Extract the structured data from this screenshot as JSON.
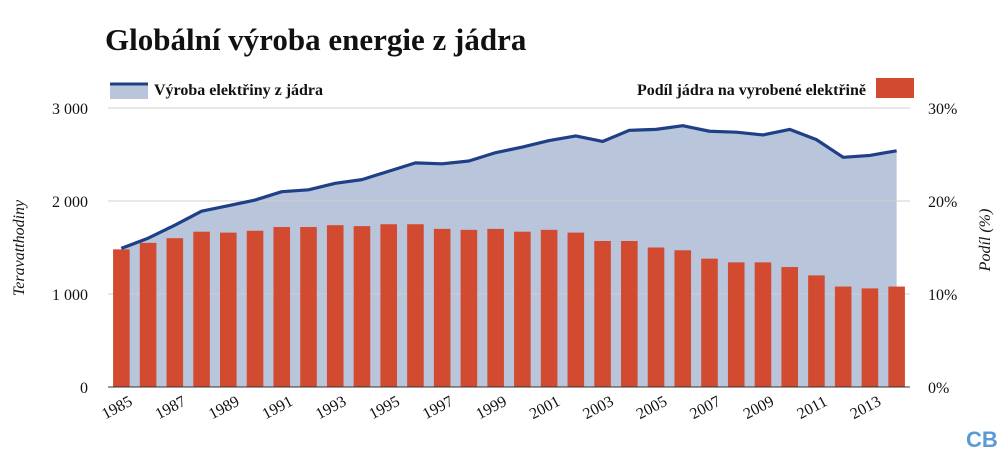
{
  "chart_data": {
    "type": "bar+area",
    "title": "Globální výroba energie z jádra",
    "x": [
      1985,
      1986,
      1987,
      1988,
      1989,
      1990,
      1991,
      1992,
      1993,
      1994,
      1995,
      1996,
      1997,
      1998,
      1999,
      2000,
      2001,
      2002,
      2003,
      2004,
      2005,
      2006,
      2007,
      2008,
      2009,
      2010,
      2011,
      2012,
      2013,
      2014
    ],
    "x_tick_labels": [
      "1985",
      "1987",
      "1989",
      "1991",
      "1993",
      "1995",
      "1997",
      "1999",
      "2001",
      "2003",
      "2005",
      "2007",
      "2009",
      "2011",
      "2013"
    ],
    "series": [
      {
        "name": "Výroba elektřiny z jádra",
        "type": "area-line",
        "axis": "left",
        "values": [
          1490,
          1600,
          1740,
          1890,
          1950,
          2010,
          2100,
          2120,
          2190,
          2230,
          2320,
          2410,
          2400,
          2430,
          2520,
          2580,
          2650,
          2700,
          2640,
          2760,
          2770,
          2810,
          2750,
          2740,
          2710,
          2770,
          2660,
          2470,
          2490,
          2540
        ]
      },
      {
        "name": "Podíl jádra na vyrobené elektřině",
        "type": "bar",
        "axis": "right",
        "values": [
          14.8,
          15.5,
          16.0,
          16.7,
          16.6,
          16.8,
          17.2,
          17.2,
          17.4,
          17.3,
          17.5,
          17.5,
          17.0,
          16.9,
          17.0,
          16.7,
          16.9,
          16.6,
          15.7,
          15.7,
          15.0,
          14.7,
          13.8,
          13.4,
          13.4,
          12.9,
          12.0,
          10.8,
          10.6,
          10.8
        ]
      }
    ],
    "y_left": {
      "label": "Teravatthodiny",
      "range": [
        0,
        3000
      ],
      "ticks": [
        0,
        1000,
        2000,
        3000
      ],
      "tick_labels": [
        "0",
        "1 000",
        "2 000",
        "3 000"
      ]
    },
    "y_right": {
      "label": "Podíl (%)",
      "range": [
        0,
        30
      ],
      "ticks": [
        0,
        10,
        20,
        30
      ],
      "tick_labels": [
        "0%",
        "10%",
        "20%",
        "30%"
      ]
    },
    "grid": true,
    "legend": [
      {
        "label": "Výroba elektřiny z jádra",
        "placement": "top-left"
      },
      {
        "label": "Podíl jádra na vyrobené elektřině",
        "placement": "top-right"
      }
    ]
  },
  "branding": {
    "logo": "CB"
  },
  "colors": {
    "line": "#1f3f87",
    "area": "#b9c5da",
    "bar": "#d24a2f",
    "grid": "#d0d0d0",
    "logo": "#5b9bd5"
  }
}
